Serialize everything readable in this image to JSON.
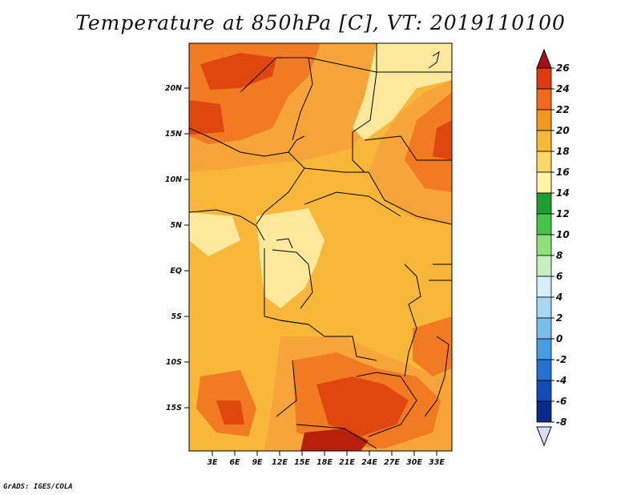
{
  "title": "Temperature at 850hPa [C], VT: 2019110100",
  "credit": "GrADS: IGES/COLA",
  "lat_labels": [
    "20N",
    "15N",
    "10N",
    "5N",
    "EQ",
    "5S",
    "10S",
    "15S"
  ],
  "lon_labels": [
    "3E",
    "6E",
    "9E",
    "12E",
    "15E",
    "18E",
    "21E",
    "24E",
    "27E",
    "30E",
    "33E"
  ],
  "colorbar": {
    "labels": [
      "26",
      "24",
      "22",
      "20",
      "18",
      "16",
      "14",
      "12",
      "10",
      "8",
      "6",
      "4",
      "2",
      "0",
      "-2",
      "-4",
      "-6",
      "-8"
    ],
    "colors": [
      "#a50f15",
      "#e03a10",
      "#ef6a1f",
      "#f4961f",
      "#f9b739",
      "#fdd56a",
      "#fff4a8",
      "#1f9d2e",
      "#46c348",
      "#8fe07a",
      "#c6f0bd",
      "#d6eef8",
      "#a9d7f2",
      "#7abdea",
      "#4a9ce0",
      "#2670d3",
      "#134bb8",
      "#0a2a8a",
      "#020c5a"
    ],
    "low_cap": "#dcdcf8"
  },
  "field_colors": {
    "c16": "#fde89c",
    "c18": "#fbc659",
    "c20": "#f7a53b",
    "c22": "#f27a22",
    "c24": "#e0470f",
    "c26": "#b8200c"
  }
}
